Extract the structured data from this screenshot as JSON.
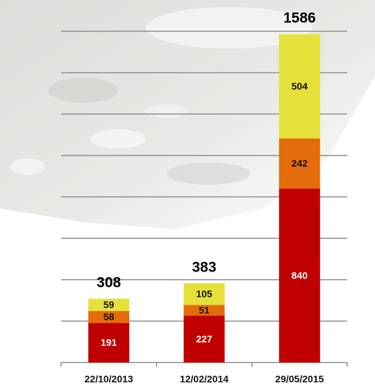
{
  "chart_data": {
    "type": "stacked_bar",
    "categories": [
      "22/10/2013",
      "12/02/2014",
      "29/05/2015"
    ],
    "series": [
      {
        "color": "#c00000",
        "label_color": "#ffffff",
        "values": [
          191,
          227,
          840
        ]
      },
      {
        "color": "#e46c0a",
        "label_color": "#111111",
        "values": [
          58,
          51,
          242
        ]
      },
      {
        "color": "#e6e03a",
        "label_color": "#111111",
        "values": [
          59,
          105,
          504
        ]
      }
    ],
    "totals": [
      308,
      383,
      1586
    ],
    "ylim": [
      0,
      1600
    ],
    "yticks": [
      200,
      400,
      600,
      800,
      1000,
      1200,
      1400,
      1600
    ],
    "grid": true
  }
}
